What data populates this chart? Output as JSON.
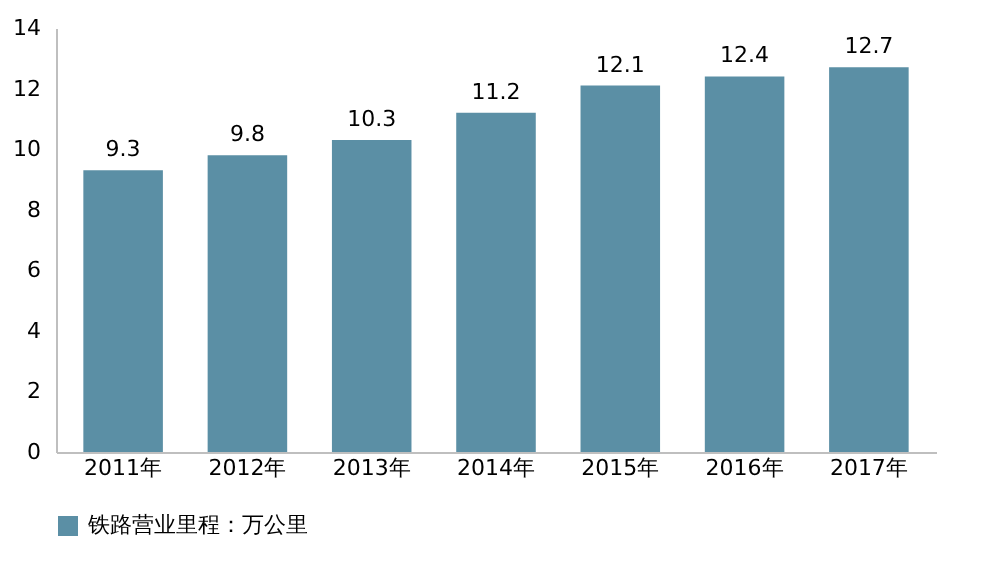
{
  "chart_data": {
    "type": "bar",
    "categories": [
      "2011年",
      "2012年",
      "2013年",
      "2014年",
      "2015年",
      "2016年",
      "2017年"
    ],
    "series": [
      {
        "name": "铁路营业里程：万公里",
        "color": "#5b8fa5",
        "values": [
          9.3,
          9.8,
          10.3,
          11.2,
          12.1,
          12.4,
          12.7
        ]
      }
    ],
    "ylim": [
      0,
      14
    ],
    "yticks": [
      0,
      2,
      4,
      6,
      8,
      10,
      12,
      14
    ],
    "grid": false,
    "legend": "bottom",
    "data_labels": true
  }
}
